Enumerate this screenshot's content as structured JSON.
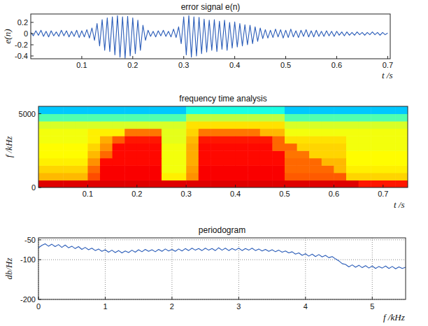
{
  "chart_data": [
    {
      "type": "line",
      "title": "error signal e(n)",
      "x_label": "t /s",
      "y_label": "e(n)",
      "color": "#2a5cb8",
      "grid": false,
      "xlim": [
        0,
        0.705
      ],
      "ylim": [
        -0.45,
        0.35
      ],
      "xticks": [
        0.1,
        0.2,
        0.3,
        0.4,
        0.5,
        0.6,
        0.7
      ],
      "yticks": [
        -0.4,
        -0.2,
        0,
        0.2
      ],
      "x": [
        0,
        0.005,
        0.01,
        0.015,
        0.02,
        0.025,
        0.03,
        0.035,
        0.04,
        0.045,
        0.05,
        0.055,
        0.06,
        0.065,
        0.07,
        0.075,
        0.08,
        0.085,
        0.09,
        0.095,
        0.1,
        0.105,
        0.11,
        0.115,
        0.12,
        0.125,
        0.13,
        0.135,
        0.14,
        0.145,
        0.15,
        0.155,
        0.16,
        0.165,
        0.17,
        0.175,
        0.18,
        0.185,
        0.19,
        0.195,
        0.2,
        0.205,
        0.21,
        0.215,
        0.22,
        0.225,
        0.23,
        0.235,
        0.24,
        0.245,
        0.25,
        0.255,
        0.26,
        0.265,
        0.27,
        0.275,
        0.28,
        0.285,
        0.29,
        0.295,
        0.3,
        0.305,
        0.31,
        0.315,
        0.32,
        0.325,
        0.33,
        0.335,
        0.34,
        0.345,
        0.35,
        0.355,
        0.36,
        0.365,
        0.37,
        0.375,
        0.38,
        0.385,
        0.39,
        0.395,
        0.4,
        0.405,
        0.41,
        0.415,
        0.42,
        0.425,
        0.43,
        0.435,
        0.44,
        0.445,
        0.45,
        0.455,
        0.46,
        0.465,
        0.47,
        0.475,
        0.48,
        0.485,
        0.49,
        0.495,
        0.5,
        0.505,
        0.51,
        0.515,
        0.52,
        0.525,
        0.53,
        0.535,
        0.54,
        0.545,
        0.55,
        0.555,
        0.56,
        0.565,
        0.57,
        0.575,
        0.58,
        0.585,
        0.59,
        0.595,
        0.6,
        0.605,
        0.61,
        0.615,
        0.62,
        0.625,
        0.63,
        0.635,
        0.64,
        0.645,
        0.65,
        0.655,
        0.66,
        0.665,
        0.67,
        0.675,
        0.68,
        0.685,
        0.69,
        0.695,
        0.7
      ],
      "values": [
        0.02,
        -0.04,
        0.05,
        -0.03,
        0.06,
        -0.05,
        0.04,
        -0.06,
        0.05,
        -0.04,
        0.03,
        -0.05,
        0.06,
        -0.04,
        0.05,
        -0.06,
        0.04,
        -0.05,
        0.06,
        -0.07,
        0.05,
        -0.06,
        0.07,
        -0.08,
        0.1,
        -0.12,
        0.18,
        -0.22,
        0.25,
        -0.3,
        0.28,
        -0.32,
        0.3,
        -0.38,
        0.32,
        -0.42,
        0.3,
        -0.44,
        0.31,
        -0.4,
        0.28,
        -0.36,
        0.24,
        -0.3,
        0.15,
        -0.12,
        0.06,
        -0.05,
        0.04,
        -0.06,
        0.05,
        -0.04,
        0.06,
        -0.05,
        0.04,
        -0.06,
        0.08,
        -0.07,
        0.12,
        -0.18,
        0.3,
        -0.38,
        0.32,
        -0.42,
        0.3,
        -0.4,
        0.29,
        -0.36,
        0.26,
        -0.33,
        0.24,
        -0.3,
        0.25,
        -0.32,
        0.22,
        -0.28,
        0.24,
        -0.3,
        0.2,
        -0.26,
        0.21,
        -0.24,
        0.18,
        -0.22,
        0.16,
        -0.2,
        0.15,
        -0.18,
        0.12,
        -0.14,
        0.1,
        -0.09,
        0.07,
        -0.08,
        0.06,
        -0.07,
        0.08,
        -0.06,
        0.07,
        -0.08,
        0.06,
        -0.07,
        0.08,
        -0.06,
        0.05,
        -0.07,
        0.06,
        -0.05,
        0.07,
        -0.06,
        0.05,
        -0.06,
        0.06,
        -0.05,
        0.04,
        -0.05,
        0.05,
        -0.04,
        0.04,
        -0.05,
        0.04,
        -0.03,
        0.03,
        -0.04,
        0.03,
        -0.03,
        0.02,
        -0.03,
        0.03,
        -0.02,
        0.02,
        -0.03,
        0.02,
        -0.02,
        0.03,
        -0.02,
        0.02,
        -0.03,
        0.02,
        -0.02,
        0.01
      ]
    },
    {
      "type": "heatmap",
      "title": "frequency time analysis",
      "x_label": "t /s",
      "y_label": "f /kHz",
      "grid": false,
      "xlim": [
        0,
        0.75
      ],
      "ylim": [
        0,
        5500
      ],
      "xticks": [
        0.1,
        0.2,
        0.3,
        0.4,
        0.5,
        0.6,
        0.7
      ],
      "yticks": [
        0,
        5000
      ],
      "zlim": [
        -110,
        -35
      ],
      "xbins": [
        0,
        0.025,
        0.05,
        0.075,
        0.1,
        0.125,
        0.15,
        0.175,
        0.2,
        0.225,
        0.25,
        0.275,
        0.3,
        0.325,
        0.35,
        0.375,
        0.4,
        0.425,
        0.45,
        0.475,
        0.5,
        0.525,
        0.55,
        0.575,
        0.6,
        0.625,
        0.65,
        0.675,
        0.7,
        0.725,
        0.75
      ],
      "ybins": [
        0,
        500,
        1000,
        1500,
        2000,
        2500,
        3000,
        3500,
        4000,
        4500,
        5000,
        5500
      ],
      "z": [
        [
          -42,
          -42,
          -42,
          -42,
          -42,
          -42,
          -42,
          -42,
          -42,
          -42,
          -42,
          -42,
          -42,
          -42,
          -42,
          -42,
          -42,
          -42,
          -42,
          -42,
          -42,
          -42,
          -42,
          -42,
          -42,
          -42,
          -46,
          -46,
          -46,
          -46
        ],
        [
          -58,
          -58,
          -58,
          -58,
          -50,
          -44,
          -44,
          -44,
          -44,
          -44,
          -62,
          -62,
          -55,
          -44,
          -44,
          -44,
          -44,
          -44,
          -44,
          -44,
          -51,
          -51,
          -51,
          -51,
          -51,
          -60,
          -60,
          -60,
          -60,
          -60
        ],
        [
          -60,
          -60,
          -60,
          -60,
          -52,
          -44,
          -44,
          -44,
          -44,
          -44,
          -64,
          -64,
          -56,
          -44,
          -44,
          -44,
          -44,
          -44,
          -44,
          -44,
          -52,
          -52,
          -52,
          -52,
          -58,
          -62,
          -62,
          -62,
          -62,
          -62
        ],
        [
          -62,
          -62,
          -62,
          -62,
          -55,
          -45,
          -45,
          -45,
          -45,
          -45,
          -64,
          -64,
          -57,
          -45,
          -45,
          -45,
          -45,
          -45,
          -45,
          -45,
          -52,
          -52,
          -52,
          -58,
          -58,
          -63,
          -63,
          -63,
          -63,
          -63
        ],
        [
          -63,
          -63,
          -63,
          -63,
          -58,
          -52,
          -45,
          -45,
          -45,
          -45,
          -64,
          -64,
          -57,
          -45,
          -45,
          -45,
          -45,
          -45,
          -45,
          -45,
          -53,
          -53,
          -60,
          -60,
          -60,
          -63,
          -63,
          -63,
          -63,
          -63
        ],
        [
          -63,
          -63,
          -63,
          -63,
          -60,
          -55,
          -45,
          -45,
          -45,
          -45,
          -64,
          -64,
          -57,
          -45,
          -45,
          -45,
          -45,
          -45,
          -45,
          -52,
          -52,
          -60,
          -60,
          -60,
          -60,
          -64,
          -64,
          -64,
          -64,
          -64
        ],
        [
          -64,
          -64,
          -64,
          -64,
          -62,
          -57,
          -51,
          -46,
          -46,
          -46,
          -65,
          -65,
          -58,
          -46,
          -46,
          -46,
          -46,
          -46,
          -46,
          -52,
          -61,
          -61,
          -61,
          -61,
          -61,
          -64,
          -64,
          -64,
          -64,
          -64
        ],
        [
          -64,
          -64,
          -64,
          -64,
          -62,
          -62,
          -62,
          -53,
          -53,
          -53,
          -65,
          -65,
          -60,
          -53,
          -53,
          -53,
          -53,
          -53,
          -58,
          -58,
          -64,
          -64,
          -64,
          -64,
          -64,
          -64,
          -64,
          -64,
          -64,
          -64
        ],
        [
          -66,
          -66,
          -66,
          -66,
          -66,
          -66,
          -66,
          -66,
          -66,
          -66,
          -66,
          -66,
          -61,
          -61,
          -61,
          -61,
          -61,
          -61,
          -61,
          -61,
          -66,
          -66,
          -66,
          -66,
          -66,
          -66,
          -66,
          -66,
          -66,
          -66
        ],
        [
          -76,
          -76,
          -76,
          -76,
          -76,
          -76,
          -76,
          -76,
          -76,
          -76,
          -76,
          -76,
          -68,
          -68,
          -68,
          -68,
          -68,
          -68,
          -68,
          -68,
          -76,
          -76,
          -76,
          -76,
          -76,
          -76,
          -76,
          -76,
          -76,
          -76
        ],
        [
          -86,
          -86,
          -86,
          -86,
          -86,
          -86,
          -86,
          -86,
          -86,
          -86,
          -86,
          -86,
          -80,
          -80,
          -80,
          -80,
          -80,
          -80,
          -80,
          -80,
          -86,
          -86,
          -86,
          -86,
          -86,
          -86,
          -86,
          -86,
          -86,
          -86
        ]
      ]
    },
    {
      "type": "line",
      "title": "periodogram",
      "x_label": "f /kHz",
      "y_label": "db/Hz",
      "color": "#2a5cb8",
      "grid": true,
      "xlim": [
        0,
        5.5
      ],
      "ylim": [
        -200,
        -45
      ],
      "xticks": [
        0,
        1,
        2,
        3,
        4,
        5
      ],
      "yticks": [
        -200,
        -100,
        -50
      ],
      "x": [
        0,
        0.05,
        0.1,
        0.15,
        0.2,
        0.25,
        0.3,
        0.35,
        0.4,
        0.45,
        0.5,
        0.55,
        0.6,
        0.65,
        0.7,
        0.75,
        0.8,
        0.85,
        0.9,
        0.95,
        1,
        1.05,
        1.1,
        1.15,
        1.2,
        1.25,
        1.3,
        1.35,
        1.4,
        1.45,
        1.5,
        1.55,
        1.6,
        1.65,
        1.7,
        1.75,
        1.8,
        1.85,
        1.9,
        1.95,
        2,
        2.05,
        2.1,
        2.15,
        2.2,
        2.25,
        2.3,
        2.35,
        2.4,
        2.45,
        2.5,
        2.55,
        2.6,
        2.65,
        2.7,
        2.75,
        2.8,
        2.85,
        2.9,
        2.95,
        3,
        3.05,
        3.1,
        3.15,
        3.2,
        3.25,
        3.3,
        3.35,
        3.4,
        3.45,
        3.5,
        3.55,
        3.6,
        3.65,
        3.7,
        3.75,
        3.8,
        3.85,
        3.9,
        3.95,
        4,
        4.05,
        4.1,
        4.15,
        4.2,
        4.25,
        4.3,
        4.35,
        4.4,
        4.45,
        4.5,
        4.55,
        4.6,
        4.65,
        4.7,
        4.75,
        4.8,
        4.85,
        4.9,
        4.95,
        5,
        5.05,
        5.1,
        5.15,
        5.2,
        5.25,
        5.3,
        5.35,
        5.4,
        5.45,
        5.5
      ],
      "values": [
        -70,
        -64,
        -60,
        -66,
        -61,
        -67,
        -62,
        -69,
        -63,
        -70,
        -66,
        -72,
        -67,
        -74,
        -69,
        -75,
        -71,
        -77,
        -73,
        -79,
        -75,
        -81,
        -76,
        -82,
        -77,
        -83,
        -78,
        -82,
        -76,
        -81,
        -75,
        -80,
        -74,
        -79,
        -75,
        -80,
        -74,
        -79,
        -73,
        -78,
        -74,
        -79,
        -73,
        -78,
        -72,
        -77,
        -71,
        -76,
        -72,
        -77,
        -71,
        -76,
        -72,
        -77,
        -70,
        -76,
        -71,
        -77,
        -72,
        -76,
        -71,
        -77,
        -72,
        -76,
        -71,
        -77,
        -73,
        -78,
        -74,
        -79,
        -75,
        -80,
        -76,
        -81,
        -78,
        -83,
        -80,
        -86,
        -83,
        -89,
        -85,
        -91,
        -86,
        -92,
        -87,
        -93,
        -89,
        -95,
        -92,
        -98,
        -103,
        -110,
        -112,
        -118,
        -113,
        -119,
        -114,
        -120,
        -115,
        -121,
        -116,
        -122,
        -117,
        -121,
        -116,
        -122,
        -117,
        -123,
        -118,
        -122,
        -119
      ]
    }
  ]
}
